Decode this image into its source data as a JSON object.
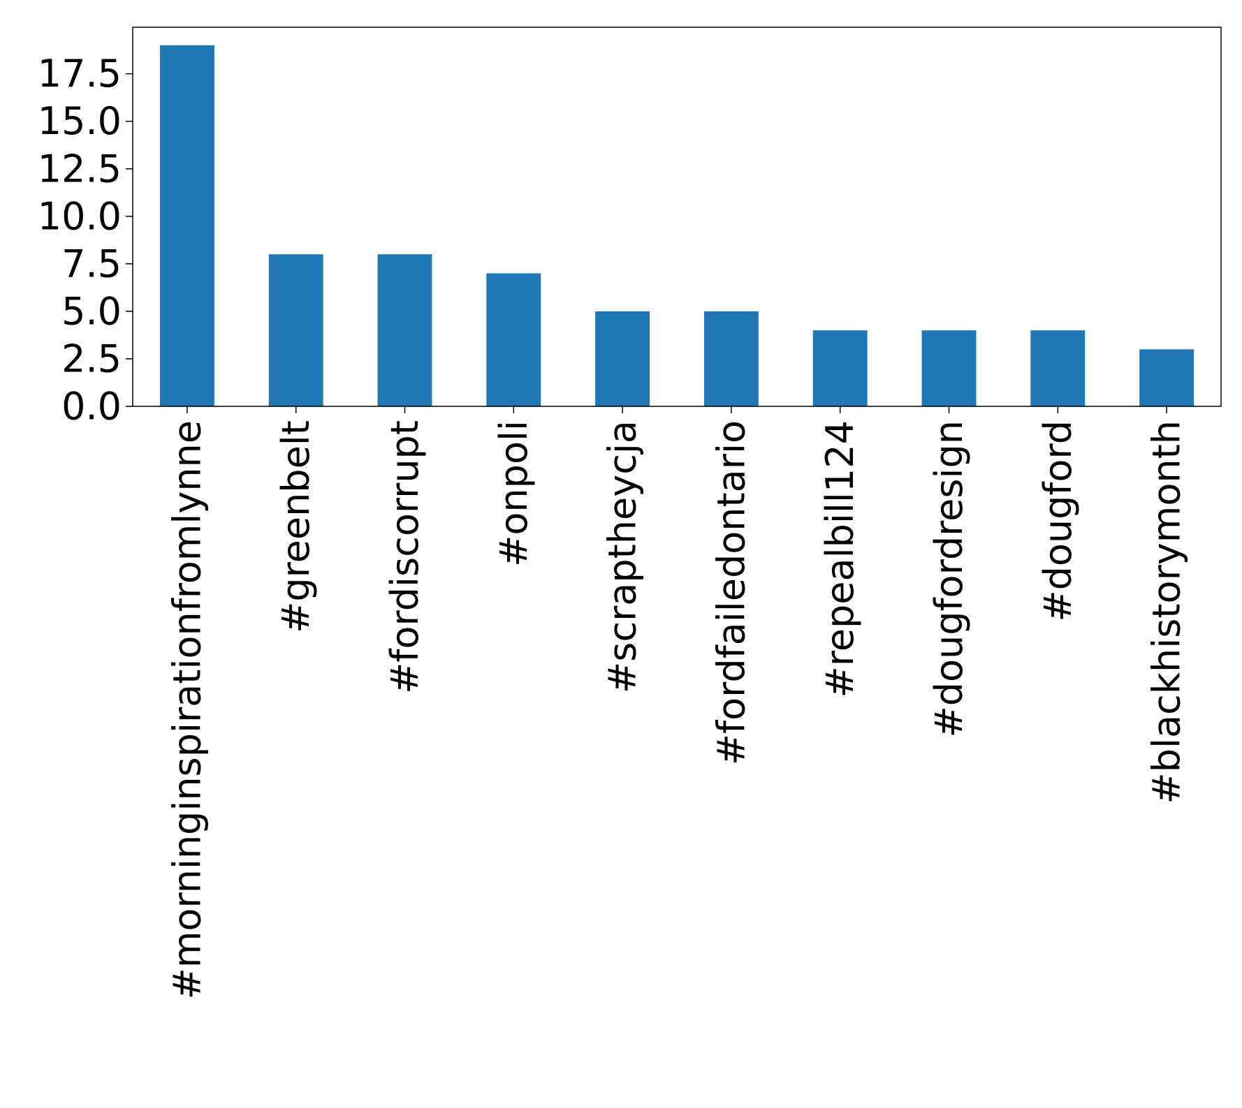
{
  "chart_data": {
    "type": "bar",
    "title": "",
    "xlabel": "",
    "ylabel": "",
    "categories": [
      "#morninginspirationfromlynne",
      "#greenbelt",
      "#fordiscorrupt",
      "#onpoli",
      "#scraptheycja",
      "#fordfailedontario",
      "#repealbill124",
      "#dougfordresign",
      "#dougford",
      "#blackhistorymonth"
    ],
    "values": [
      19,
      8,
      8,
      7,
      5,
      5,
      4,
      4,
      4,
      3
    ],
    "ylim": [
      0,
      19.95
    ],
    "yticks": [
      0.0,
      2.5,
      5.0,
      7.5,
      10.0,
      12.5,
      15.0,
      17.5
    ],
    "ytick_labels": [
      "0.0",
      "2.5",
      "5.0",
      "7.5",
      "10.0",
      "12.5",
      "15.0",
      "17.5"
    ],
    "bar_color": "#1f77b4",
    "grid": false,
    "legend": "none"
  }
}
